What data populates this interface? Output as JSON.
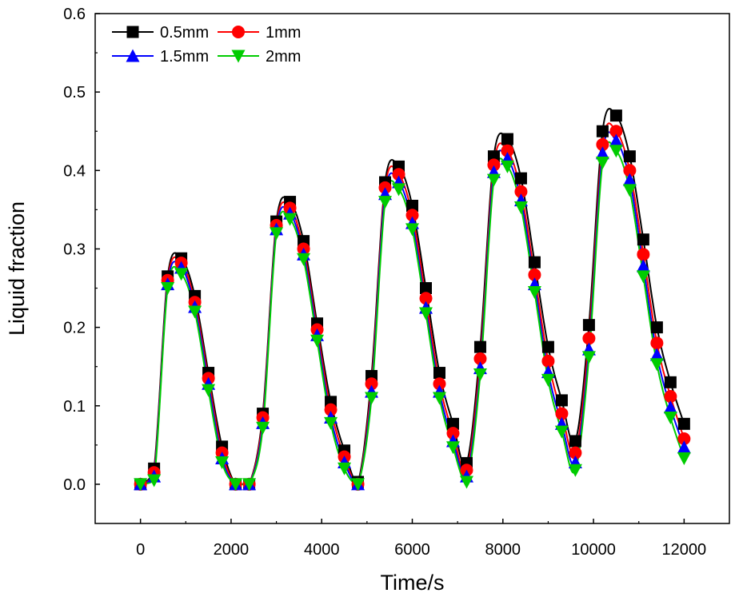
{
  "chart_data": {
    "type": "line",
    "xlabel": "Time/s",
    "ylabel": "Liquid fraction",
    "xlim": [
      -1000,
      13000
    ],
    "ylim": [
      -0.05,
      0.6
    ],
    "xticks": [
      0,
      2000,
      4000,
      6000,
      8000,
      10000,
      12000
    ],
    "yticks": [
      0.0,
      0.1,
      0.2,
      0.3,
      0.4,
      0.5,
      0.6
    ],
    "xtick_labels": [
      "0",
      "2000",
      "4000",
      "6000",
      "8000",
      "10000",
      "12000"
    ],
    "ytick_labels": [
      "0.0",
      "0.1",
      "0.2",
      "0.3",
      "0.4",
      "0.5",
      "0.6"
    ],
    "legend_position": "top-left",
    "grid": false,
    "x": [
      0,
      300,
      600,
      900,
      1200,
      1500,
      1800,
      2100,
      2400,
      2700,
      3000,
      3300,
      3600,
      3900,
      4200,
      4500,
      4800,
      5100,
      5400,
      5700,
      6000,
      6300,
      6600,
      6900,
      7200,
      7500,
      7800,
      8100,
      8400,
      8700,
      9000,
      9300,
      9600,
      9900,
      10200,
      10500,
      10800,
      11100,
      11400,
      11700,
      12000
    ],
    "series": [
      {
        "name": "0.5mm",
        "color": "#000000",
        "marker": "square",
        "values": [
          0.0,
          0.02,
          0.265,
          0.288,
          0.24,
          0.142,
          0.048,
          0.0,
          0.0,
          0.09,
          0.335,
          0.36,
          0.31,
          0.205,
          0.105,
          0.043,
          0.003,
          0.138,
          0.385,
          0.405,
          0.355,
          0.25,
          0.142,
          0.077,
          0.027,
          0.175,
          0.418,
          0.44,
          0.39,
          0.283,
          0.175,
          0.107,
          0.055,
          0.203,
          0.45,
          0.47,
          0.418,
          0.312,
          0.2,
          0.13,
          0.077
        ]
      },
      {
        "name": "1mm",
        "color": "#ff0000",
        "marker": "circle",
        "values": [
          0.0,
          0.015,
          0.26,
          0.282,
          0.232,
          0.135,
          0.04,
          0.0,
          0.0,
          0.085,
          0.33,
          0.352,
          0.3,
          0.197,
          0.095,
          0.035,
          0.0,
          0.128,
          0.378,
          0.395,
          0.343,
          0.237,
          0.128,
          0.065,
          0.018,
          0.16,
          0.407,
          0.425,
          0.373,
          0.267,
          0.157,
          0.09,
          0.04,
          0.186,
          0.433,
          0.45,
          0.4,
          0.293,
          0.18,
          0.112,
          0.058
        ]
      },
      {
        "name": "1.5mm",
        "color": "#0000ff",
        "marker": "triangle-up",
        "values": [
          0.0,
          0.01,
          0.255,
          0.276,
          0.226,
          0.128,
          0.033,
          0.0,
          0.0,
          0.078,
          0.325,
          0.345,
          0.293,
          0.19,
          0.085,
          0.028,
          0.0,
          0.118,
          0.37,
          0.385,
          0.333,
          0.225,
          0.118,
          0.055,
          0.01,
          0.148,
          0.398,
          0.415,
          0.362,
          0.255,
          0.143,
          0.077,
          0.028,
          0.172,
          0.422,
          0.438,
          0.388,
          0.278,
          0.165,
          0.098,
          0.047
        ]
      },
      {
        "name": "2mm",
        "color": "#00cc00",
        "marker": "triangle-down",
        "values": [
          0.0,
          0.005,
          0.25,
          0.268,
          0.22,
          0.12,
          0.028,
          0.0,
          0.0,
          0.072,
          0.32,
          0.338,
          0.287,
          0.183,
          0.078,
          0.02,
          0.0,
          0.11,
          0.36,
          0.376,
          0.325,
          0.218,
          0.11,
          0.047,
          0.003,
          0.14,
          0.388,
          0.405,
          0.353,
          0.245,
          0.133,
          0.067,
          0.018,
          0.162,
          0.41,
          0.425,
          0.375,
          0.265,
          0.153,
          0.085,
          0.033
        ]
      }
    ]
  }
}
